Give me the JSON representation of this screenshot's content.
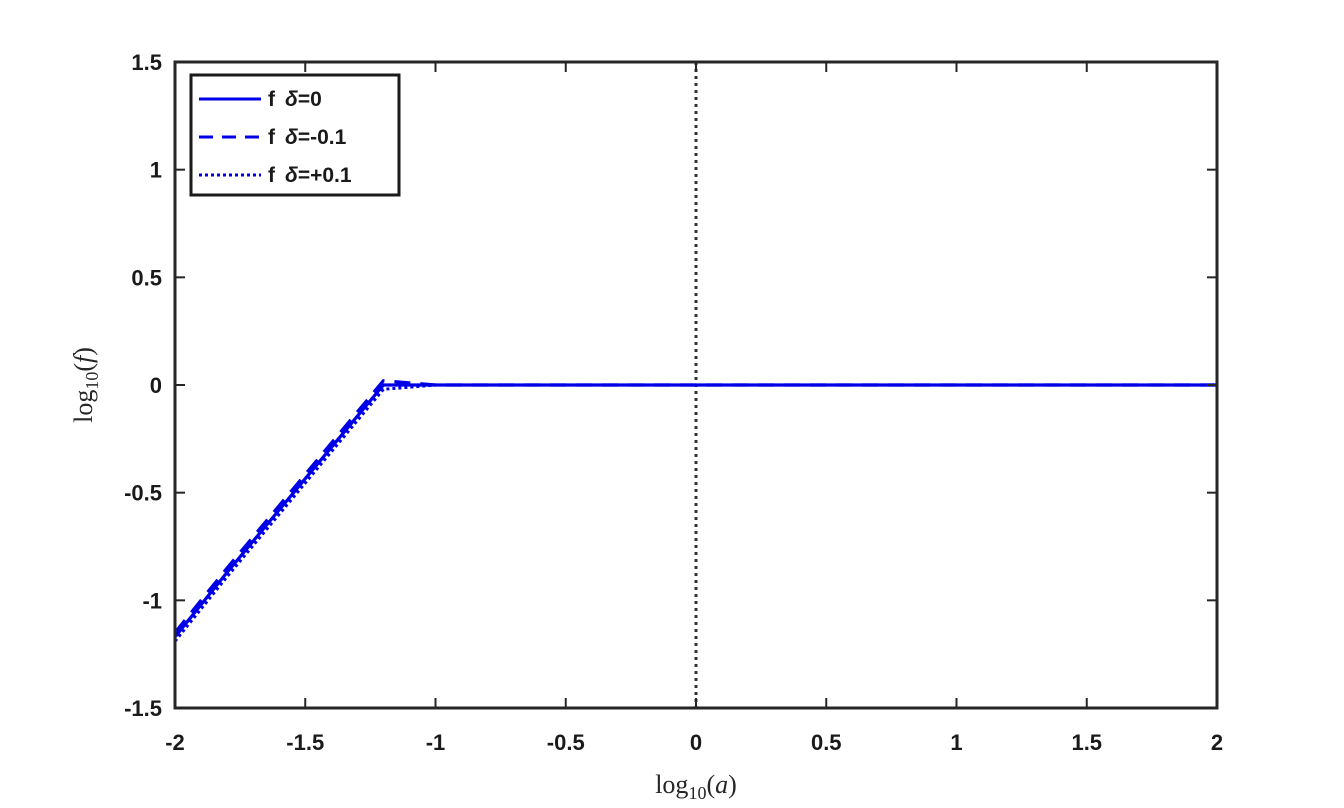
{
  "chart_data": {
    "type": "line",
    "xlabel": {
      "pre": "log",
      "sub": "10",
      "open": "(",
      "var": "a",
      "close": ")"
    },
    "ylabel": {
      "pre": "log",
      "sub": "10",
      "open": "(",
      "var": "f",
      "close": ")"
    },
    "xlim": [
      -2,
      2
    ],
    "ylim": [
      -1.5,
      1.5
    ],
    "xticks": [
      "-2",
      "-1.5",
      "-1",
      "-0.5",
      "0",
      "0.5",
      "1",
      "1.5",
      "2"
    ],
    "xtick_values": [
      -2,
      -1.5,
      -1,
      -0.5,
      0,
      0.5,
      1,
      1.5,
      2
    ],
    "yticks": [
      "-1.5",
      "-1",
      "-0.5",
      "0",
      "0.5",
      "1",
      "1.5"
    ],
    "ytick_values": [
      -1.5,
      -1,
      -0.5,
      0,
      0.5,
      1,
      1.5
    ],
    "grid": false,
    "legend_position": "top-left",
    "vertical_reference_line": {
      "x": 0,
      "style": "dotted",
      "color": "#333333"
    },
    "x": [
      -2.0,
      -1.8,
      -1.6,
      -1.4,
      -1.2,
      -1.0,
      -0.8,
      -0.6,
      -0.4,
      -0.2,
      0.0,
      0.2,
      0.4,
      0.6,
      0.8,
      1.0,
      1.2,
      1.4,
      1.6,
      1.8,
      2.0
    ],
    "series": [
      {
        "legend": {
          "f": "f",
          "delta": "δ",
          "value": "=0"
        },
        "style": "solid",
        "color": "#0000e6",
        "values": [
          -1.17,
          -0.87,
          -0.58,
          -0.29,
          0.0,
          -0.0,
          0.0,
          0.0,
          0.0,
          0.0,
          0.0,
          0.0,
          0.0,
          0.0,
          0.0,
          0.0,
          0.0,
          0.0,
          0.0,
          0.0,
          0.0
        ]
      },
      {
        "legend": {
          "f": "f",
          "delta": "δ",
          "value": "=-0.1"
        },
        "style": "dashed",
        "color": "#0000e6",
        "values": [
          -1.15,
          -0.85,
          -0.56,
          -0.27,
          0.02,
          0.0,
          0.0,
          0.0,
          0.0,
          0.0,
          0.0,
          0.0,
          0.0,
          0.0,
          0.0,
          0.0,
          0.0,
          0.0,
          0.0,
          0.0,
          0.0
        ]
      },
      {
        "legend": {
          "f": "f",
          "delta": "δ",
          "value": "=+0.1"
        },
        "style": "dotted",
        "color": "#0000e6",
        "values": [
          -1.19,
          -0.89,
          -0.6,
          -0.31,
          -0.02,
          0.0,
          0.0,
          0.0,
          0.0,
          0.0,
          0.0,
          0.0,
          0.0,
          0.0,
          0.0,
          0.0,
          0.0,
          0.0,
          0.0,
          0.0,
          0.0
        ]
      }
    ]
  }
}
